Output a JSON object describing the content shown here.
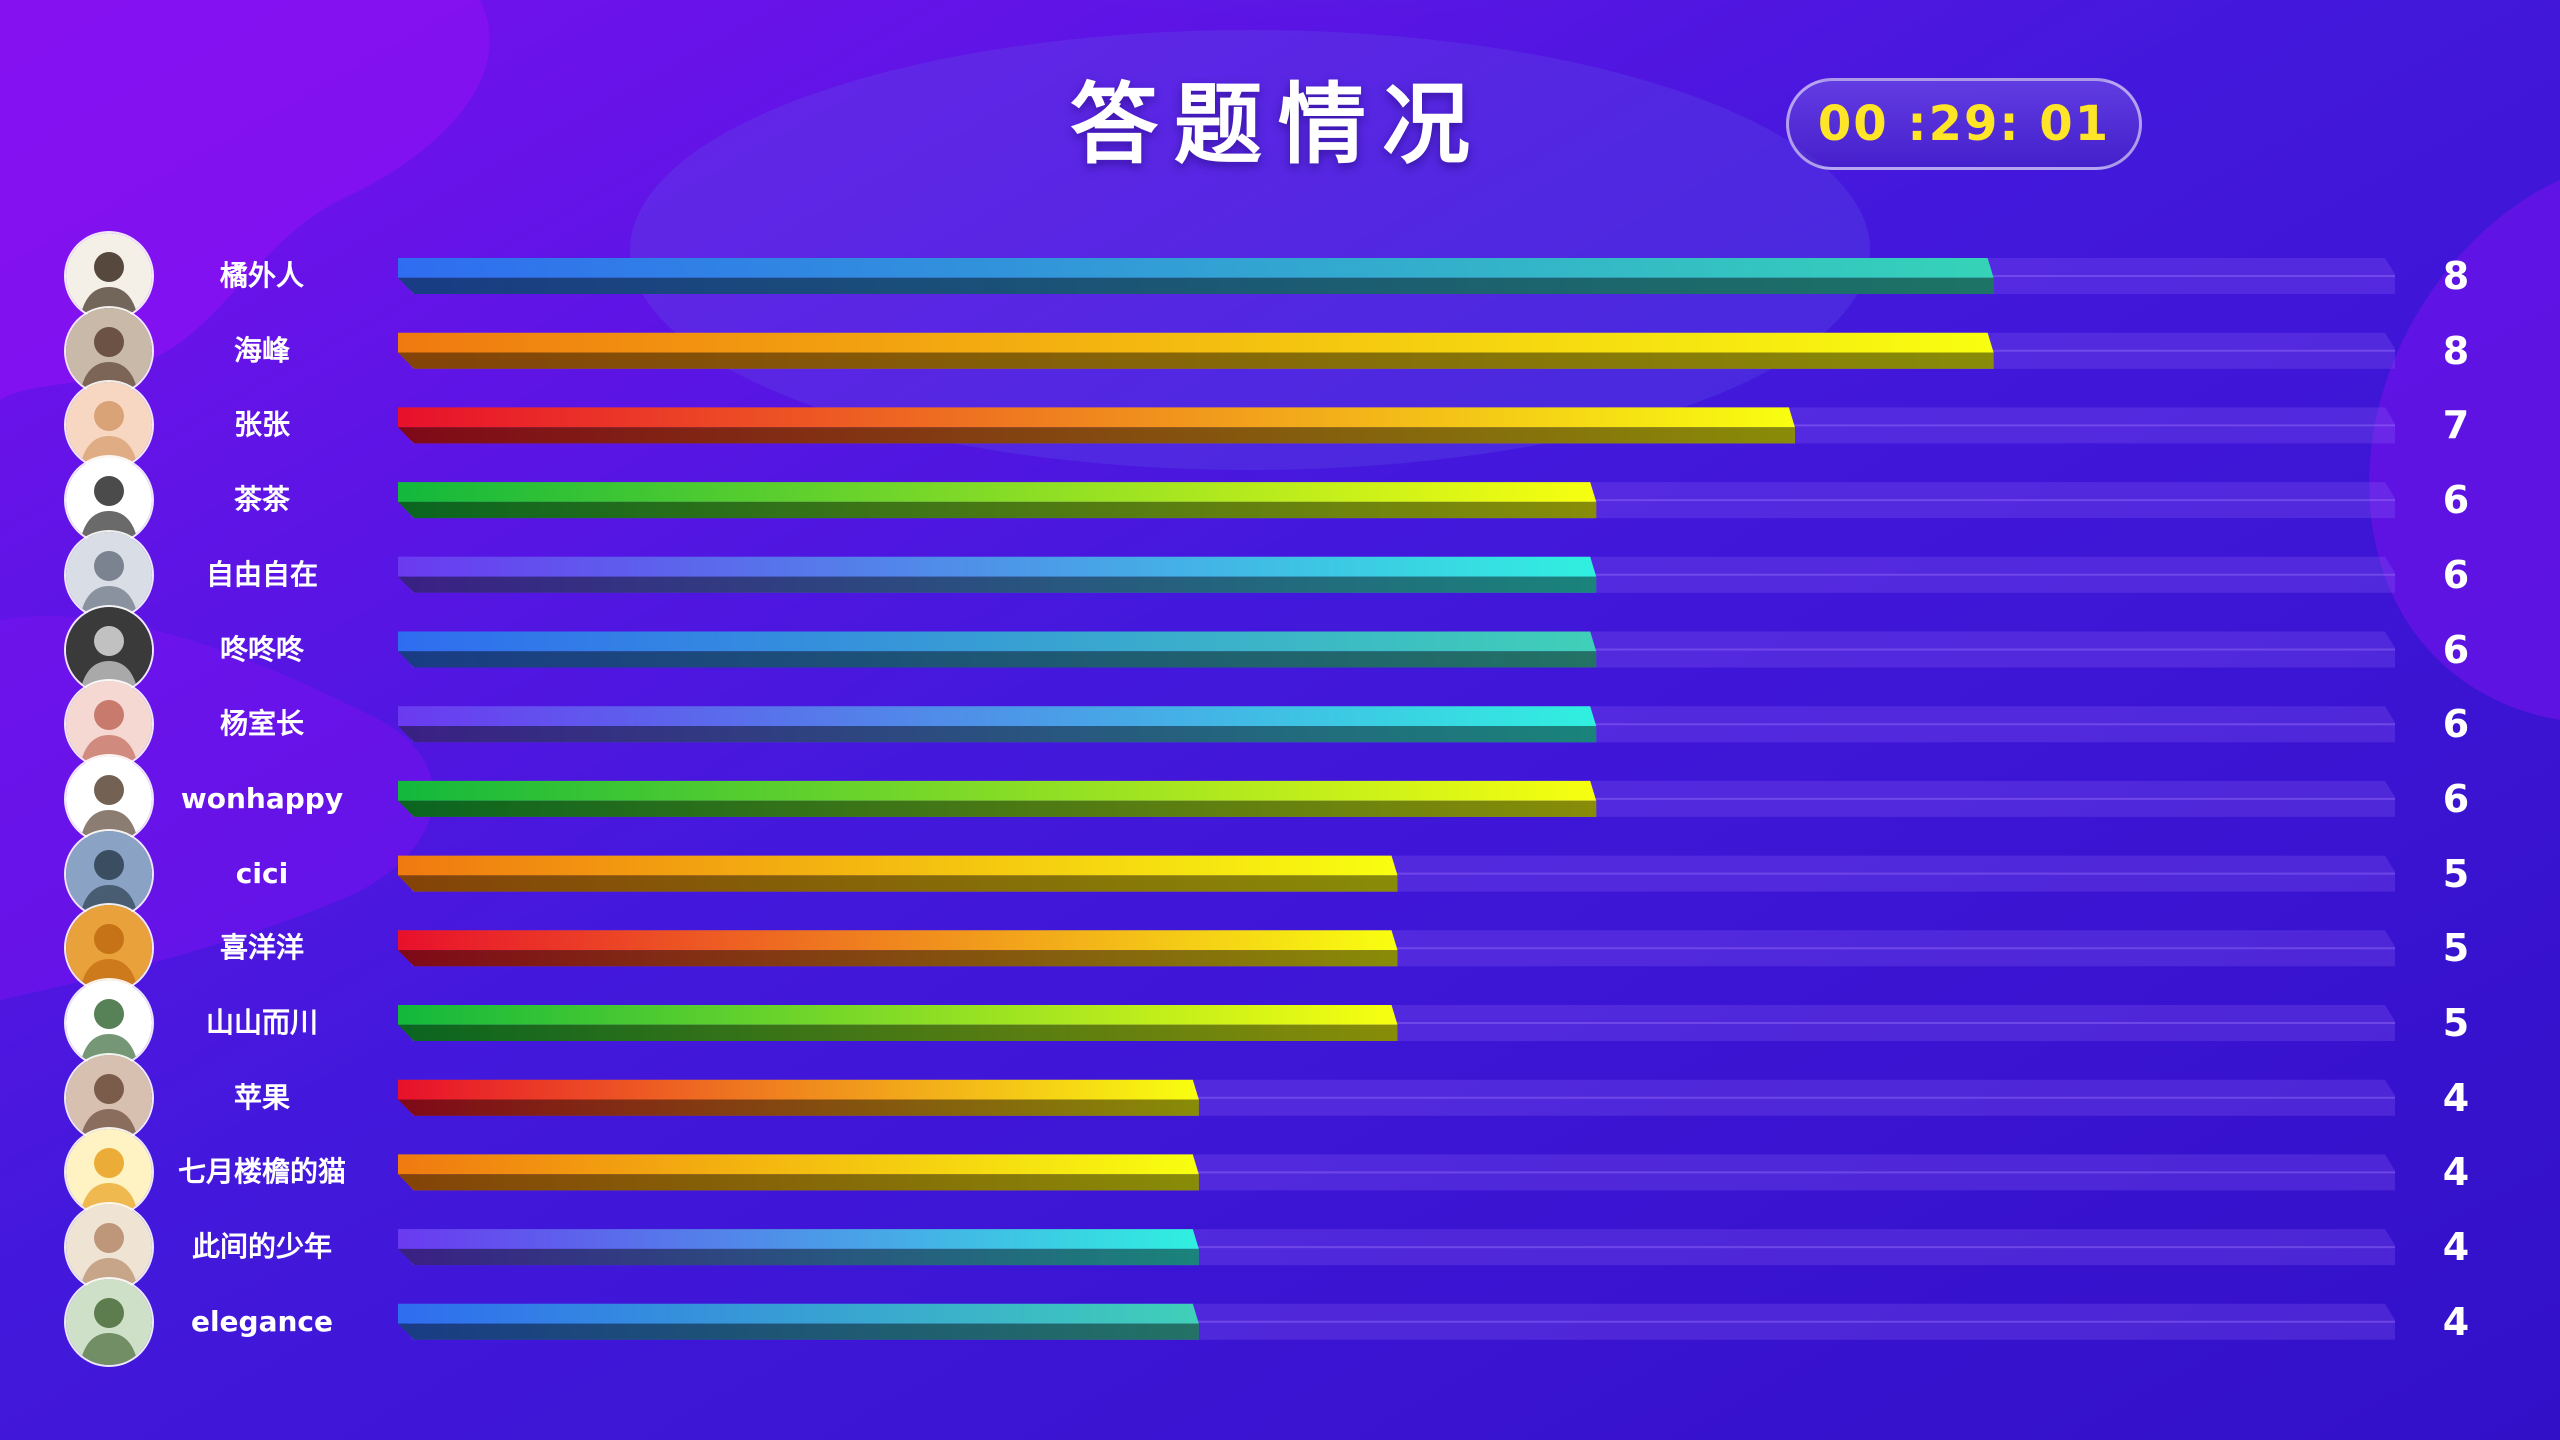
{
  "title": "答题情况",
  "timer": "00 :29: 01",
  "colors": {
    "background": "#3612d6",
    "timer_text": "#ffe528",
    "label_text": "#ffffff"
  },
  "chart_data": {
    "type": "bar",
    "orientation": "horizontal",
    "title": "答题情况",
    "categories": [
      "橘外人",
      "海峰",
      "张张",
      "茶茶",
      "自由自在",
      "咚咚咚",
      "杨室长",
      "wonhappy",
      "cici",
      "喜洋洋",
      "山山而川",
      "苹果",
      "七月楼檐的猫",
      "此间的少年",
      "elegance"
    ],
    "values": [
      8,
      8,
      7,
      6,
      6,
      6,
      6,
      6,
      5,
      5,
      5,
      4,
      4,
      4,
      4
    ],
    "xlim": [
      0,
      10
    ],
    "grid": false,
    "legend": "none",
    "bar_gradients": [
      [
        "#2f6df0",
        "#35d3b8"
      ],
      [
        "#f07a10",
        "#f8ff10"
      ],
      [
        "#e8102c",
        "#f8ff10"
      ],
      [
        "#12b83c",
        "#f8ff10"
      ],
      [
        "#6a3af0",
        "#30f0e0"
      ],
      [
        "#2f6df0",
        "#40d0b8"
      ],
      [
        "#6a3af0",
        "#30f0e0"
      ],
      [
        "#12b83c",
        "#f8ff10"
      ],
      [
        "#f07a10",
        "#f8ff10"
      ],
      [
        "#e8102c",
        "#f8ff10"
      ],
      [
        "#12b83c",
        "#f8ff10"
      ],
      [
        "#e8102c",
        "#f8ff10"
      ],
      [
        "#f07a10",
        "#f8ff10"
      ],
      [
        "#6a3af0",
        "#30f0e0"
      ],
      [
        "#2f6df0",
        "#40d0b8"
      ]
    ],
    "avatar_icons": [
      "cartoon-boy-avatar-icon",
      "group-photo-avatar-icon",
      "anime-girl-avatar-icon",
      "mr-x-logo-avatar-icon",
      "portrait-avatar-icon",
      "silhouette-avatar-icon",
      "girl-photo-avatar-icon",
      "cartoon-family-avatar-icon",
      "city-photo-avatar-icon",
      "cartoon-sheep-avatar-icon",
      "cartoon-girl-avatar-icon",
      "couple-photo-avatar-icon",
      "cartoon-duck-avatar-icon",
      "cat-paw-avatar-icon",
      "plant-portrait-avatar-icon"
    ]
  }
}
